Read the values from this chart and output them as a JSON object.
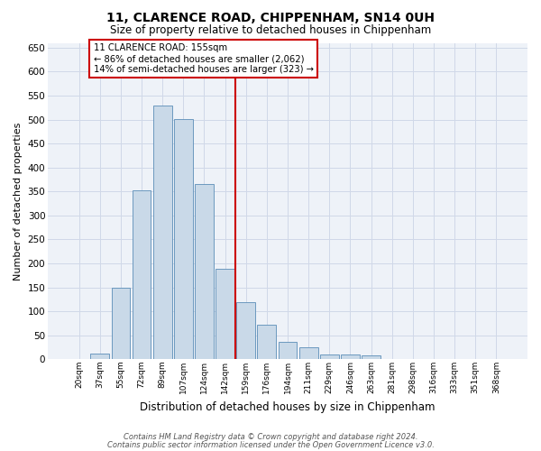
{
  "title": "11, CLARENCE ROAD, CHIPPENHAM, SN14 0UH",
  "subtitle": "Size of property relative to detached houses in Chippenham",
  "xlabel": "Distribution of detached houses by size in Chippenham",
  "ylabel": "Number of detached properties",
  "categories": [
    "20sqm",
    "37sqm",
    "55sqm",
    "72sqm",
    "89sqm",
    "107sqm",
    "124sqm",
    "142sqm",
    "159sqm",
    "176sqm",
    "194sqm",
    "211sqm",
    "229sqm",
    "246sqm",
    "263sqm",
    "281sqm",
    "298sqm",
    "316sqm",
    "333sqm",
    "351sqm",
    "368sqm"
  ],
  "values": [
    0,
    12,
    150,
    353,
    530,
    502,
    365,
    188,
    120,
    73,
    37,
    25,
    10,
    10,
    8,
    0,
    0,
    0,
    0,
    0,
    0
  ],
  "bar_color": "#c9d9e8",
  "bar_edge_color": "#5b8db8",
  "grid_color": "#d0d8e8",
  "background_color": "#eef2f8",
  "vline_color": "#cc0000",
  "annotation_line1": "11 CLARENCE ROAD: 155sqm",
  "annotation_line2": "← 86% of detached houses are smaller (2,062)",
  "annotation_line3": "14% of semi-detached houses are larger (323) →",
  "annotation_box_color": "#cc0000",
  "ylim": [
    0,
    660
  ],
  "yticks": [
    0,
    50,
    100,
    150,
    200,
    250,
    300,
    350,
    400,
    450,
    500,
    550,
    600,
    650
  ],
  "footer1": "Contains HM Land Registry data © Crown copyright and database right 2024.",
  "footer2": "Contains public sector information licensed under the Open Government Licence v3.0."
}
